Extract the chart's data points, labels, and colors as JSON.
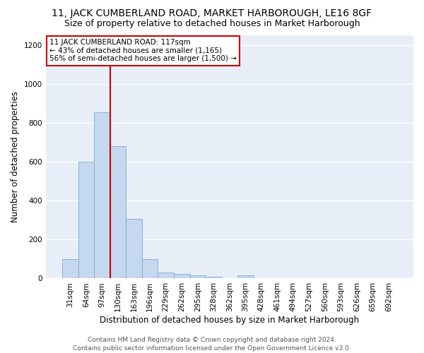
{
  "title": "11, JACK CUMBERLAND ROAD, MARKET HARBOROUGH, LE16 8GF",
  "subtitle": "Size of property relative to detached houses in Market Harborough",
  "xlabel": "Distribution of detached houses by size in Market Harborough",
  "ylabel": "Number of detached properties",
  "bar_color": "#c5d8f0",
  "bar_edge_color": "#7aadd4",
  "background_color": "#e8eef8",
  "grid_color": "#ffffff",
  "annotation_text": "11 JACK CUMBERLAND ROAD: 117sqm\n← 43% of detached houses are smaller (1,165)\n56% of semi-detached houses are larger (1,500) →",
  "annotation_box_color": "#ffffff",
  "annotation_box_edge_color": "#cc0000",
  "vline_color": "#cc0000",
  "categories": [
    "31sqm",
    "64sqm",
    "97sqm",
    "130sqm",
    "163sqm",
    "196sqm",
    "229sqm",
    "262sqm",
    "295sqm",
    "328sqm",
    "362sqm",
    "395sqm",
    "428sqm",
    "461sqm",
    "494sqm",
    "527sqm",
    "560sqm",
    "593sqm",
    "626sqm",
    "659sqm",
    "692sqm"
  ],
  "values": [
    100,
    600,
    855,
    680,
    305,
    100,
    30,
    22,
    15,
    10,
    0,
    15,
    0,
    0,
    0,
    0,
    0,
    0,
    0,
    0,
    0
  ],
  "ylim": [
    0,
    1250
  ],
  "yticks": [
    0,
    200,
    400,
    600,
    800,
    1000,
    1200
  ],
  "footer_line1": "Contains HM Land Registry data © Crown copyright and database right 2024.",
  "footer_line2": "Contains public sector information licensed under the Open Government Licence v3.0.",
  "title_fontsize": 10,
  "subtitle_fontsize": 9,
  "xlabel_fontsize": 8.5,
  "ylabel_fontsize": 8.5,
  "tick_fontsize": 7.5,
  "footer_fontsize": 6.5,
  "annotation_fontsize": 7.5
}
